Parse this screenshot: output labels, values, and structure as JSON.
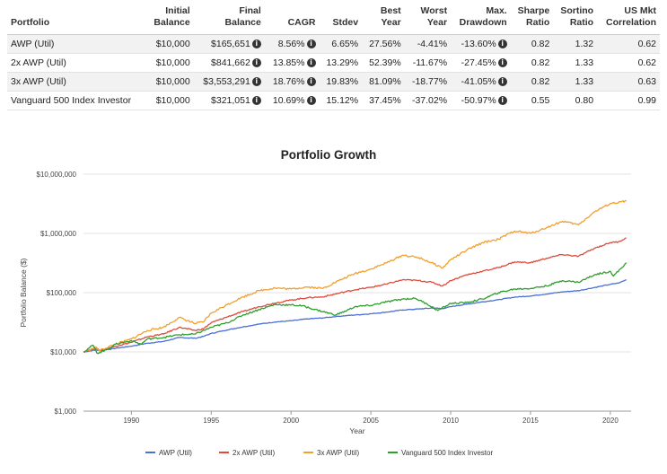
{
  "table": {
    "headers": [
      {
        "line1": "Portfolio",
        "line2": ""
      },
      {
        "line1": "Initial",
        "line2": "Balance"
      },
      {
        "line1": "Final",
        "line2": "Balance"
      },
      {
        "line1": "",
        "line2": "CAGR"
      },
      {
        "line1": "",
        "line2": "Stdev"
      },
      {
        "line1": "Best",
        "line2": "Year"
      },
      {
        "line1": "Worst",
        "line2": "Year"
      },
      {
        "line1": "Max.",
        "line2": "Drawdown"
      },
      {
        "line1": "Sharpe",
        "line2": "Ratio"
      },
      {
        "line1": "Sortino",
        "line2": "Ratio"
      },
      {
        "line1": "US Mkt",
        "line2": "Correlation"
      }
    ],
    "info_icon": "info-circle-icon",
    "rows": [
      {
        "portfolio": "AWP (Util)",
        "initial": "$10,000",
        "final": "$165,651",
        "cagr": "8.56%",
        "stdev": "6.65%",
        "best": "27.56%",
        "worst": "-4.41%",
        "drawdown": "-13.60%",
        "sharpe": "0.82",
        "sortino": "1.32",
        "correlation": "0.62"
      },
      {
        "portfolio": "2x AWP (Util)",
        "initial": "$10,000",
        "final": "$841,662",
        "cagr": "13.85%",
        "stdev": "13.29%",
        "best": "52.39%",
        "worst": "-11.67%",
        "drawdown": "-27.45%",
        "sharpe": "0.82",
        "sortino": "1.33",
        "correlation": "0.62"
      },
      {
        "portfolio": "3x AWP (Util)",
        "initial": "$10,000",
        "final": "$3,553,291",
        "cagr": "18.76%",
        "stdev": "19.83%",
        "best": "81.09%",
        "worst": "-18.77%",
        "drawdown": "-41.05%",
        "sharpe": "0.82",
        "sortino": "1.33",
        "correlation": "0.63"
      },
      {
        "portfolio": "Vanguard 500 Index Investor",
        "initial": "$10,000",
        "final": "$321,051",
        "cagr": "10.69%",
        "stdev": "15.12%",
        "best": "37.45%",
        "worst": "-37.02%",
        "drawdown": "-50.97%",
        "sharpe": "0.55",
        "sortino": "0.80",
        "correlation": "0.99"
      }
    ]
  },
  "chart_data": {
    "type": "line",
    "title": "Portfolio Growth",
    "xlabel": "Year",
    "ylabel": "Portfolio Balance ($)",
    "yscale": "log",
    "xlim": [
      1987.0,
      2021.3
    ],
    "ylim": [
      1000,
      10000000
    ],
    "xticks": [
      1990,
      1995,
      2000,
      2005,
      2010,
      2015,
      2020
    ],
    "yticks": [
      {
        "value": 1000,
        "label": "$1,000"
      },
      {
        "value": 10000,
        "label": "$10,000"
      },
      {
        "value": 100000,
        "label": "$100,000"
      },
      {
        "value": 1000000,
        "label": "$1,000,000"
      },
      {
        "value": 10000000,
        "label": "$10,000,000"
      }
    ],
    "grid": "horizontal",
    "legend_position": "bottom",
    "series": [
      {
        "name": "AWP (Util)",
        "color": "#4a6fd6",
        "x": [
          1987.0,
          1987.8,
          1988.0,
          1989.0,
          1990.0,
          1991.0,
          1992.0,
          1993.0,
          1994.0,
          1994.5,
          1995.0,
          1996.0,
          1997.0,
          1998.0,
          1999.0,
          2000.0,
          2001.0,
          2002.0,
          2003.0,
          2004.0,
          2005.0,
          2006.0,
          2007.0,
          2008.0,
          2008.8,
          2009.5,
          2010.0,
          2011.0,
          2012.0,
          2013.0,
          2014.0,
          2015.0,
          2016.0,
          2017.0,
          2018.0,
          2019.0,
          2020.0,
          2020.5,
          2021.0
        ],
        "y": [
          10000,
          10800,
          10500,
          11500,
          12500,
          14000,
          15000,
          17500,
          17000,
          18200,
          20500,
          23500,
          26500,
          29500,
          32000,
          33500,
          36000,
          37500,
          40000,
          42000,
          44000,
          47000,
          51000,
          53000,
          55000,
          54000,
          58000,
          64000,
          70000,
          76000,
          84000,
          88000,
          95000,
          103000,
          108000,
          122000,
          138000,
          145000,
          165000
        ]
      },
      {
        "name": "2x AWP (Util)",
        "color": "#e04a3a",
        "x": [
          1987.0,
          1987.8,
          1988.0,
          1989.0,
          1990.0,
          1991.0,
          1992.0,
          1993.0,
          1994.0,
          1994.5,
          1995.0,
          1996.0,
          1997.0,
          1998.0,
          1999.0,
          2000.0,
          2001.0,
          2002.0,
          2003.0,
          2004.0,
          2005.0,
          2006.0,
          2007.0,
          2008.0,
          2008.8,
          2009.5,
          2010.0,
          2011.0,
          2012.0,
          2013.0,
          2014.0,
          2015.0,
          2016.0,
          2017.0,
          2018.0,
          2019.0,
          2020.0,
          2020.5,
          2021.0
        ],
        "y": [
          10000,
          11500,
          10500,
          12500,
          14500,
          18000,
          20000,
          26000,
          23000,
          24500,
          31000,
          39000,
          48000,
          58000,
          67000,
          75000,
          82000,
          85000,
          98000,
          112000,
          123000,
          140000,
          165000,
          160000,
          150000,
          130000,
          160000,
          200000,
          230000,
          265000,
          330000,
          320000,
          380000,
          440000,
          410000,
          560000,
          700000,
          720000,
          840000
        ]
      },
      {
        "name": "3x AWP (Util)",
        "color": "#f0a030",
        "x": [
          1987.0,
          1987.8,
          1988.0,
          1989.0,
          1990.0,
          1991.0,
          1992.0,
          1993.0,
          1994.0,
          1994.5,
          1995.0,
          1996.0,
          1997.0,
          1998.0,
          1999.0,
          2000.0,
          2001.0,
          2002.0,
          2003.0,
          2004.0,
          2005.0,
          2006.0,
          2007.0,
          2008.0,
          2008.8,
          2009.5,
          2010.0,
          2011.0,
          2012.0,
          2013.0,
          2014.0,
          2015.0,
          2016.0,
          2017.0,
          2018.0,
          2019.0,
          2020.0,
          2020.5,
          2021.0
        ],
        "y": [
          10000,
          12000,
          10500,
          13500,
          16500,
          23000,
          26000,
          38000,
          30000,
          32000,
          45000,
          63000,
          85000,
          108000,
          120000,
          115000,
          125000,
          118000,
          160000,
          210000,
          250000,
          320000,
          430000,
          390000,
          320000,
          260000,
          360000,
          520000,
          700000,
          800000,
          1100000,
          1000000,
          1250000,
          1600000,
          1400000,
          2300000,
          3200000,
          3300000,
          3550000
        ]
      },
      {
        "name": "Vanguard 500 Index Investor",
        "color": "#2e9e2e",
        "x": [
          1987.0,
          1987.6,
          1987.85,
          1988.5,
          1989.0,
          1990.0,
          1990.6,
          1991.0,
          1992.0,
          1993.0,
          1994.0,
          1995.0,
          1996.0,
          1997.0,
          1998.0,
          1999.0,
          2000.0,
          2000.7,
          2001.5,
          2002.8,
          2003.5,
          2004.0,
          2005.0,
          2006.0,
          2007.0,
          2007.8,
          2008.5,
          2009.2,
          2010.0,
          2011.0,
          2012.0,
          2013.0,
          2014.0,
          2015.0,
          2016.0,
          2017.0,
          2018.0,
          2019.0,
          2020.0,
          2020.2,
          2021.0
        ],
        "y": [
          10000,
          13000,
          9500,
          11000,
          13500,
          15500,
          13500,
          16500,
          17500,
          19500,
          20000,
          26000,
          31000,
          42000,
          52000,
          63000,
          62000,
          60000,
          52000,
          42000,
          50000,
          58000,
          61000,
          70000,
          78000,
          80000,
          65000,
          50000,
          66000,
          68000,
          78000,
          100000,
          115000,
          118000,
          130000,
          160000,
          150000,
          200000,
          230000,
          190000,
          320000
        ]
      }
    ]
  }
}
